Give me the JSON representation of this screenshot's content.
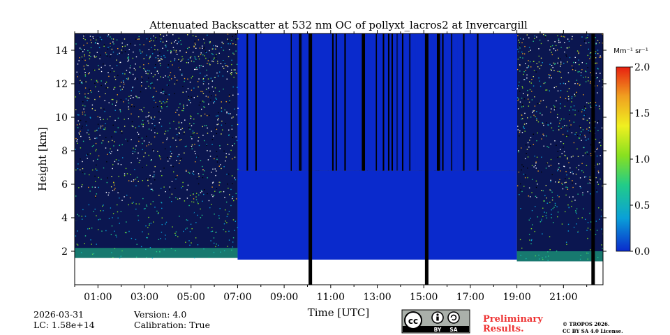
{
  "chart_data": {
    "type": "heatmap",
    "title": "Attenuated Backscatter at 532 nm OC of pollyxt_lacros2 at Invercargill",
    "xlabel": "Time [UTC]",
    "ylabel": "Height [km]",
    "xlim_hours": [
      0,
      22.7
    ],
    "ylim_km": [
      0,
      15
    ],
    "x_ticks": [
      {
        "value": 1,
        "label": "01:00"
      },
      {
        "value": 3,
        "label": "03:00"
      },
      {
        "value": 5,
        "label": "05:00"
      },
      {
        "value": 7,
        "label": "07:00"
      },
      {
        "value": 9,
        "label": "09:00"
      },
      {
        "value": 11,
        "label": "11:00"
      },
      {
        "value": 13,
        "label": "13:00"
      },
      {
        "value": 15,
        "label": "15:00"
      },
      {
        "value": 17,
        "label": "17:00"
      },
      {
        "value": 19,
        "label": "19:00"
      },
      {
        "value": 21,
        "label": "21:00"
      }
    ],
    "y_ticks": [
      {
        "value": 2,
        "label": "2"
      },
      {
        "value": 4,
        "label": "4"
      },
      {
        "value": 6,
        "label": "6"
      },
      {
        "value": 8,
        "label": "8"
      },
      {
        "value": 10,
        "label": "10"
      },
      {
        "value": 12,
        "label": "12"
      },
      {
        "value": 14,
        "label": "14"
      }
    ],
    "colorbar": {
      "unit": "Mm⁻¹ sr⁻¹",
      "range": [
        0,
        2
      ],
      "ticks": [
        {
          "value": 0.0,
          "label": "0.0"
        },
        {
          "value": 0.5,
          "label": "0.5"
        },
        {
          "value": 1.0,
          "label": "1.0"
        },
        {
          "value": 1.5,
          "label": "1.5"
        },
        {
          "value": 2.0,
          "label": "2.0"
        }
      ],
      "colors": [
        "#0a2acc",
        "#0aa0d8",
        "#22cc88",
        "#88e020",
        "#f0f020",
        "#f0a020",
        "#e82010"
      ]
    },
    "regions": [
      {
        "kind": "noisy",
        "t0": 0,
        "t1": 7.0,
        "h0": 1.6,
        "h1": 15
      },
      {
        "kind": "cloud",
        "t0": 7.0,
        "t1": 19.0,
        "h0": 1.5,
        "h1": 6.8,
        "value": 0.05
      },
      {
        "kind": "attenuated",
        "t0": 7.0,
        "t1": 19.0,
        "h0": 6.8,
        "h1": 15
      },
      {
        "kind": "noisy",
        "t0": 19.0,
        "t1": 22.7,
        "h0": 1.4,
        "h1": 15
      }
    ],
    "gaps_hours": [
      [
        10.05,
        10.2
      ],
      [
        15.05,
        15.2
      ],
      [
        22.2,
        22.35
      ]
    ]
  },
  "footer": {
    "date": "2026-03-31",
    "lc": "LC: 1.58e+14",
    "version": "Version: 4.0",
    "calibration": "Calibration: True",
    "preliminary_line1": "Preliminary",
    "preliminary_line2": "Results.",
    "copyright_line1": "© TROPOS 2026.",
    "copyright_line2": "CC BY SA 4.0 License.",
    "license_badge": {
      "label_cc": "cc",
      "label_by": "BY",
      "label_sa": "SA"
    }
  },
  "colors": {
    "preliminary": "#ee3333",
    "badge_bg": "#aab0aa"
  }
}
